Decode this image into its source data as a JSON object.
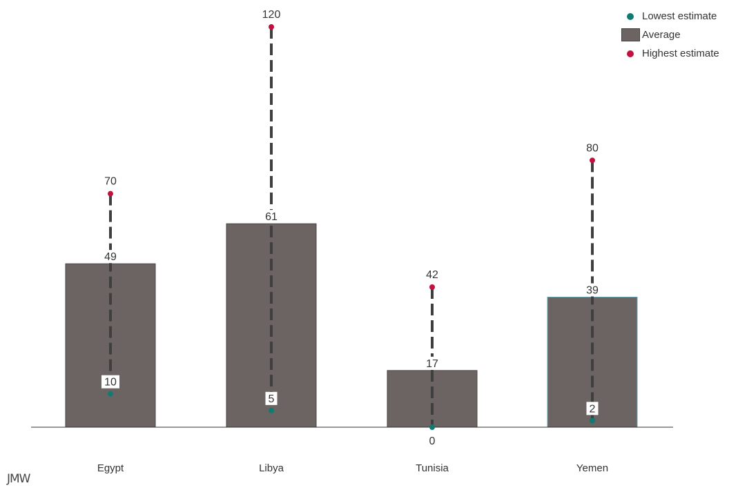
{
  "chart_data": {
    "type": "bar",
    "categories": [
      "Egypt",
      "Libya",
      "Tunisia",
      "Yemen"
    ],
    "series": [
      {
        "name": "Lowest estimate",
        "values": [
          10,
          5,
          0,
          2
        ]
      },
      {
        "name": "Average",
        "values": [
          49,
          61,
          17,
          39
        ]
      },
      {
        "name": "Highest estimate",
        "values": [
          70,
          120,
          42,
          80
        ]
      }
    ],
    "ylim": [
      0,
      120
    ],
    "grid": false,
    "legend_position": "top-right"
  },
  "legend": {
    "items": [
      {
        "label": "Lowest estimate",
        "marker": "dot",
        "color": "#0e7c72"
      },
      {
        "label": "Average",
        "marker": "box",
        "color": "#6b6462"
      },
      {
        "label": "Highest estimate",
        "marker": "dot",
        "color": "#c4103f"
      }
    ]
  },
  "colors": {
    "bar": "#6b6462",
    "bar_highlight_border": "#6aa0b0",
    "low": "#0e7c72",
    "high": "#c4103f",
    "range_line": "#3f3f3f",
    "text": "#333333"
  },
  "logo": {
    "text": "JMW",
    "icon": "jmw-logo"
  }
}
